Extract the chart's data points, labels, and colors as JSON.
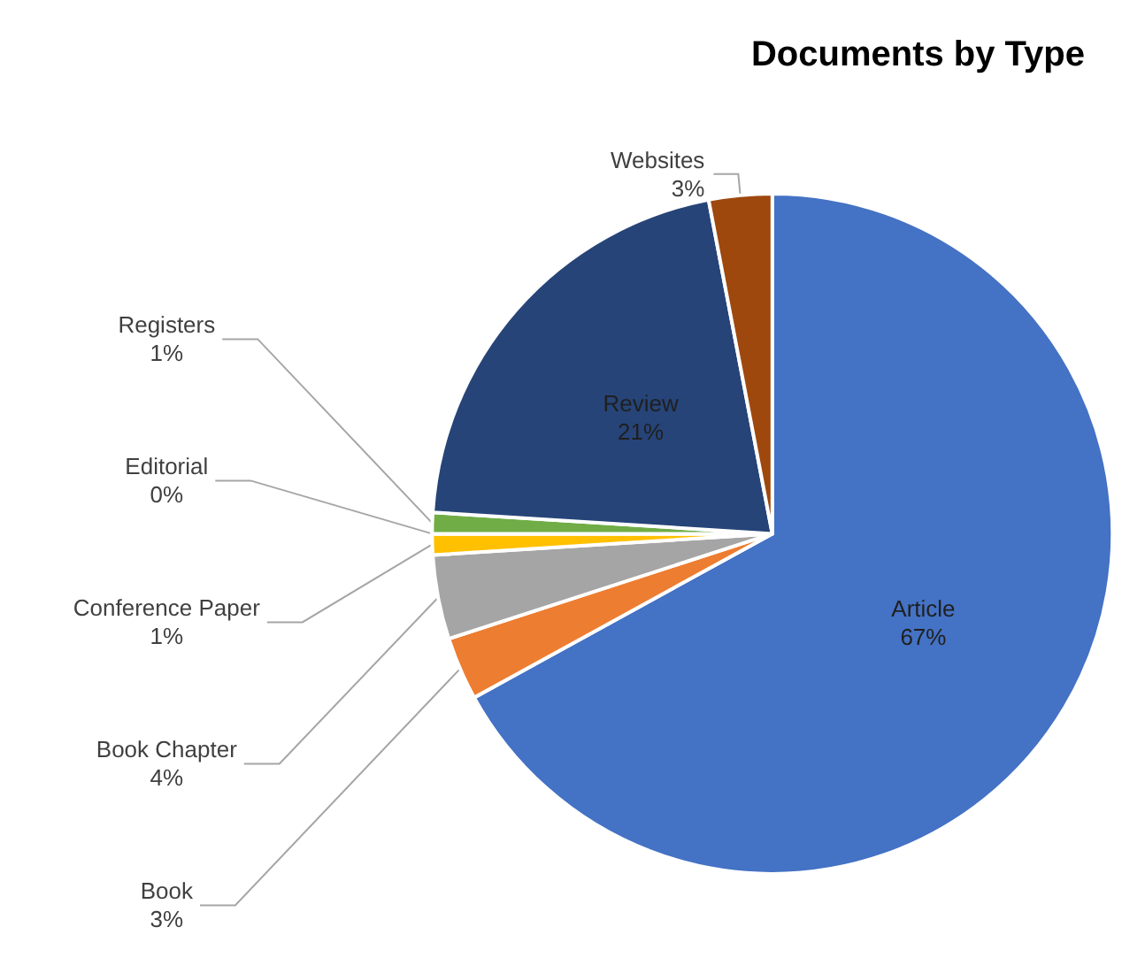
{
  "chart_data": {
    "type": "pie",
    "title": "Documents by Type",
    "categories": [
      "Article",
      "Book",
      "Book Chapter",
      "Conference Paper",
      "Editorial",
      "Registers",
      "Review",
      "Websites"
    ],
    "values": [
      67,
      3,
      4,
      1,
      0,
      1,
      21,
      3
    ],
    "colors": [
      "#4472c4",
      "#ed7d31",
      "#a5a5a5",
      "#ffc000",
      "#5b9bd5",
      "#70ad47",
      "#264478",
      "#9e480e"
    ],
    "value_labels": [
      "67%",
      "3%",
      "4%",
      "1%",
      "0%",
      "1%",
      "21%",
      "3%"
    ],
    "legend": false
  }
}
